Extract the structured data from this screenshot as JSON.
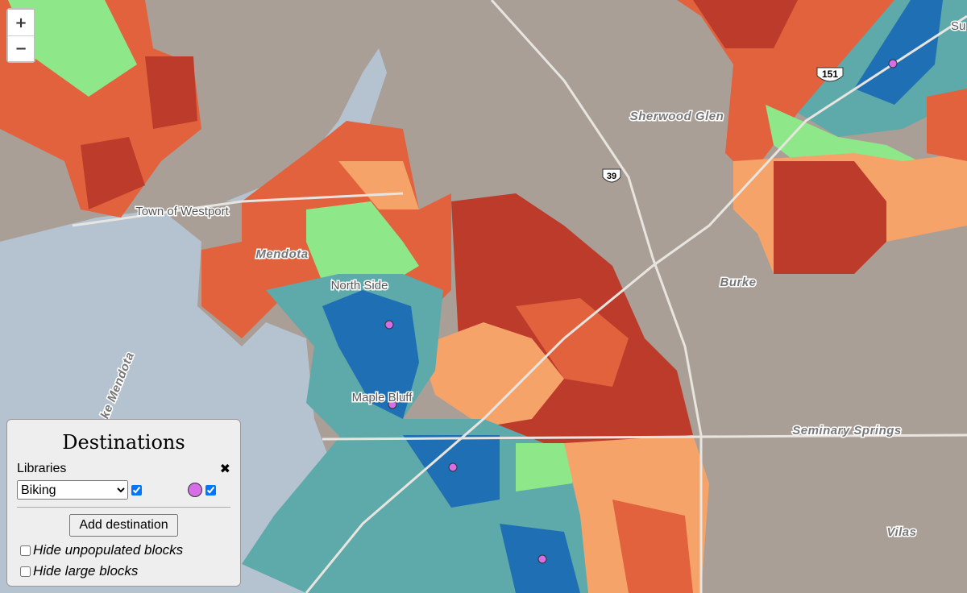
{
  "zoom": {
    "in": "+",
    "out": "−"
  },
  "map_labels": [
    "Town of Westport",
    "Mendota",
    "North Side",
    "Maple Bluff",
    "Sherwood Glen",
    "Burke",
    "Seminary Springs",
    "Vilas",
    "ke Mendota",
    "Su"
  ],
  "shields": [
    "151",
    "39"
  ],
  "panel": {
    "title": "Destinations",
    "destination": {
      "name": "Libraries",
      "mode": "Biking",
      "remove": "✖"
    },
    "add_button": "Add destination",
    "options": [
      "Hide unpopulated blocks",
      "Hide large blocks"
    ]
  }
}
